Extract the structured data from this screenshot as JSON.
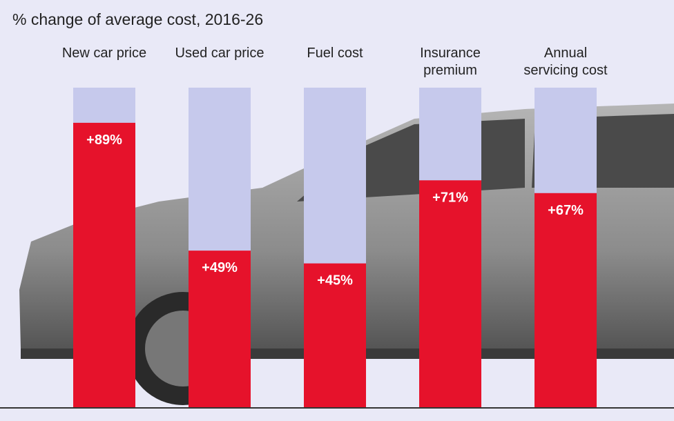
{
  "chart_data": {
    "type": "bar",
    "title": "% change of average cost, 2016-26",
    "categories": [
      "New car price",
      "Used car price",
      "Fuel cost",
      "Insurance premium",
      "Annual servicing cost"
    ],
    "values": [
      89,
      49,
      45,
      71,
      67
    ],
    "value_labels": [
      "+89%",
      "+49%",
      "+45%",
      "+71%",
      "+67%"
    ],
    "color": "#e6122b",
    "track_color": "#c6c9ec",
    "ylim": [
      0,
      100
    ]
  }
}
